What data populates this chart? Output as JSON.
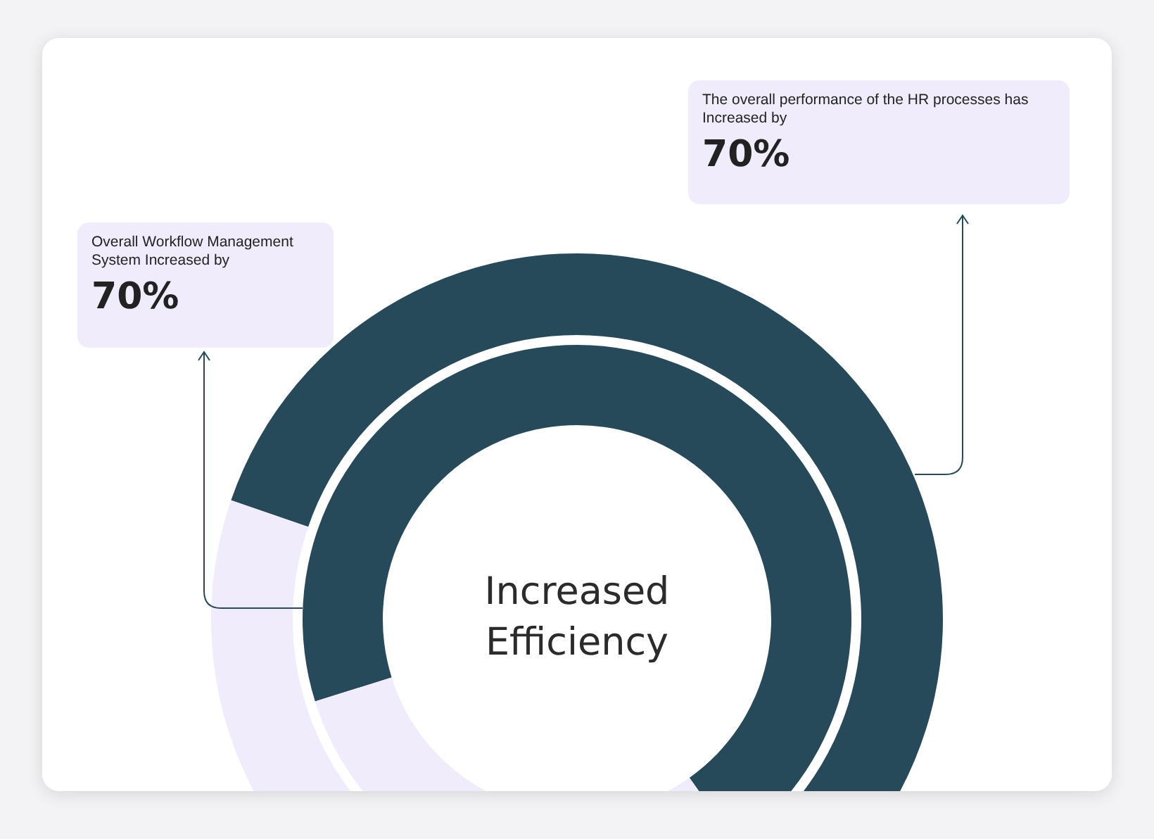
{
  "chart_data": [
    {
      "type": "donut",
      "title": "Increased Efficiency",
      "annotations": [
        "The overall performance of the HR processes has Increased by"
      ],
      "categories": [
        null,
        null
      ],
      "values": [
        70,
        30
      ],
      "colors": [
        "#264a5a",
        "#f0ecfc"
      ],
      "value_labels": [
        "70%",
        null
      ]
    },
    {
      "type": "donut",
      "annotations": [
        "Overall Workflow Management System Increased by"
      ],
      "categories": [
        null,
        null
      ],
      "values": [
        70,
        30
      ],
      "colors": [
        "#264a5a",
        "#f0ecfc"
      ],
      "value_labels": [
        "70%",
        null
      ]
    }
  ]
}
